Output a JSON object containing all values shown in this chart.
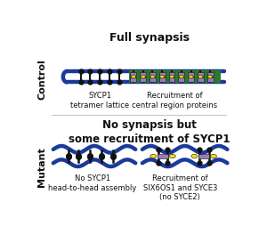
{
  "title_control": "Full synapsis",
  "title_mutant": "No synapsis but\nsome recruitment of SYCP1",
  "label_control": "Control",
  "label_mutant": "Mutant",
  "label_sycp1_lattice": "SYCP1\ntetramer lattice",
  "label_central": "Recruitment of\ncentral region proteins",
  "label_no_sycp1": "No SYCP1\nhead-to-head assembly",
  "label_recruitment": "Recruitment of\nSIX6OS1 and SYCE3\n(no SYCE2)",
  "blue": "#1a3a9c",
  "black": "#111111",
  "green": "#2a7a2a",
  "purple": "#9b7bb5",
  "yellow": "#ffe000",
  "white": "#ffffff",
  "bg": "#ffffff"
}
